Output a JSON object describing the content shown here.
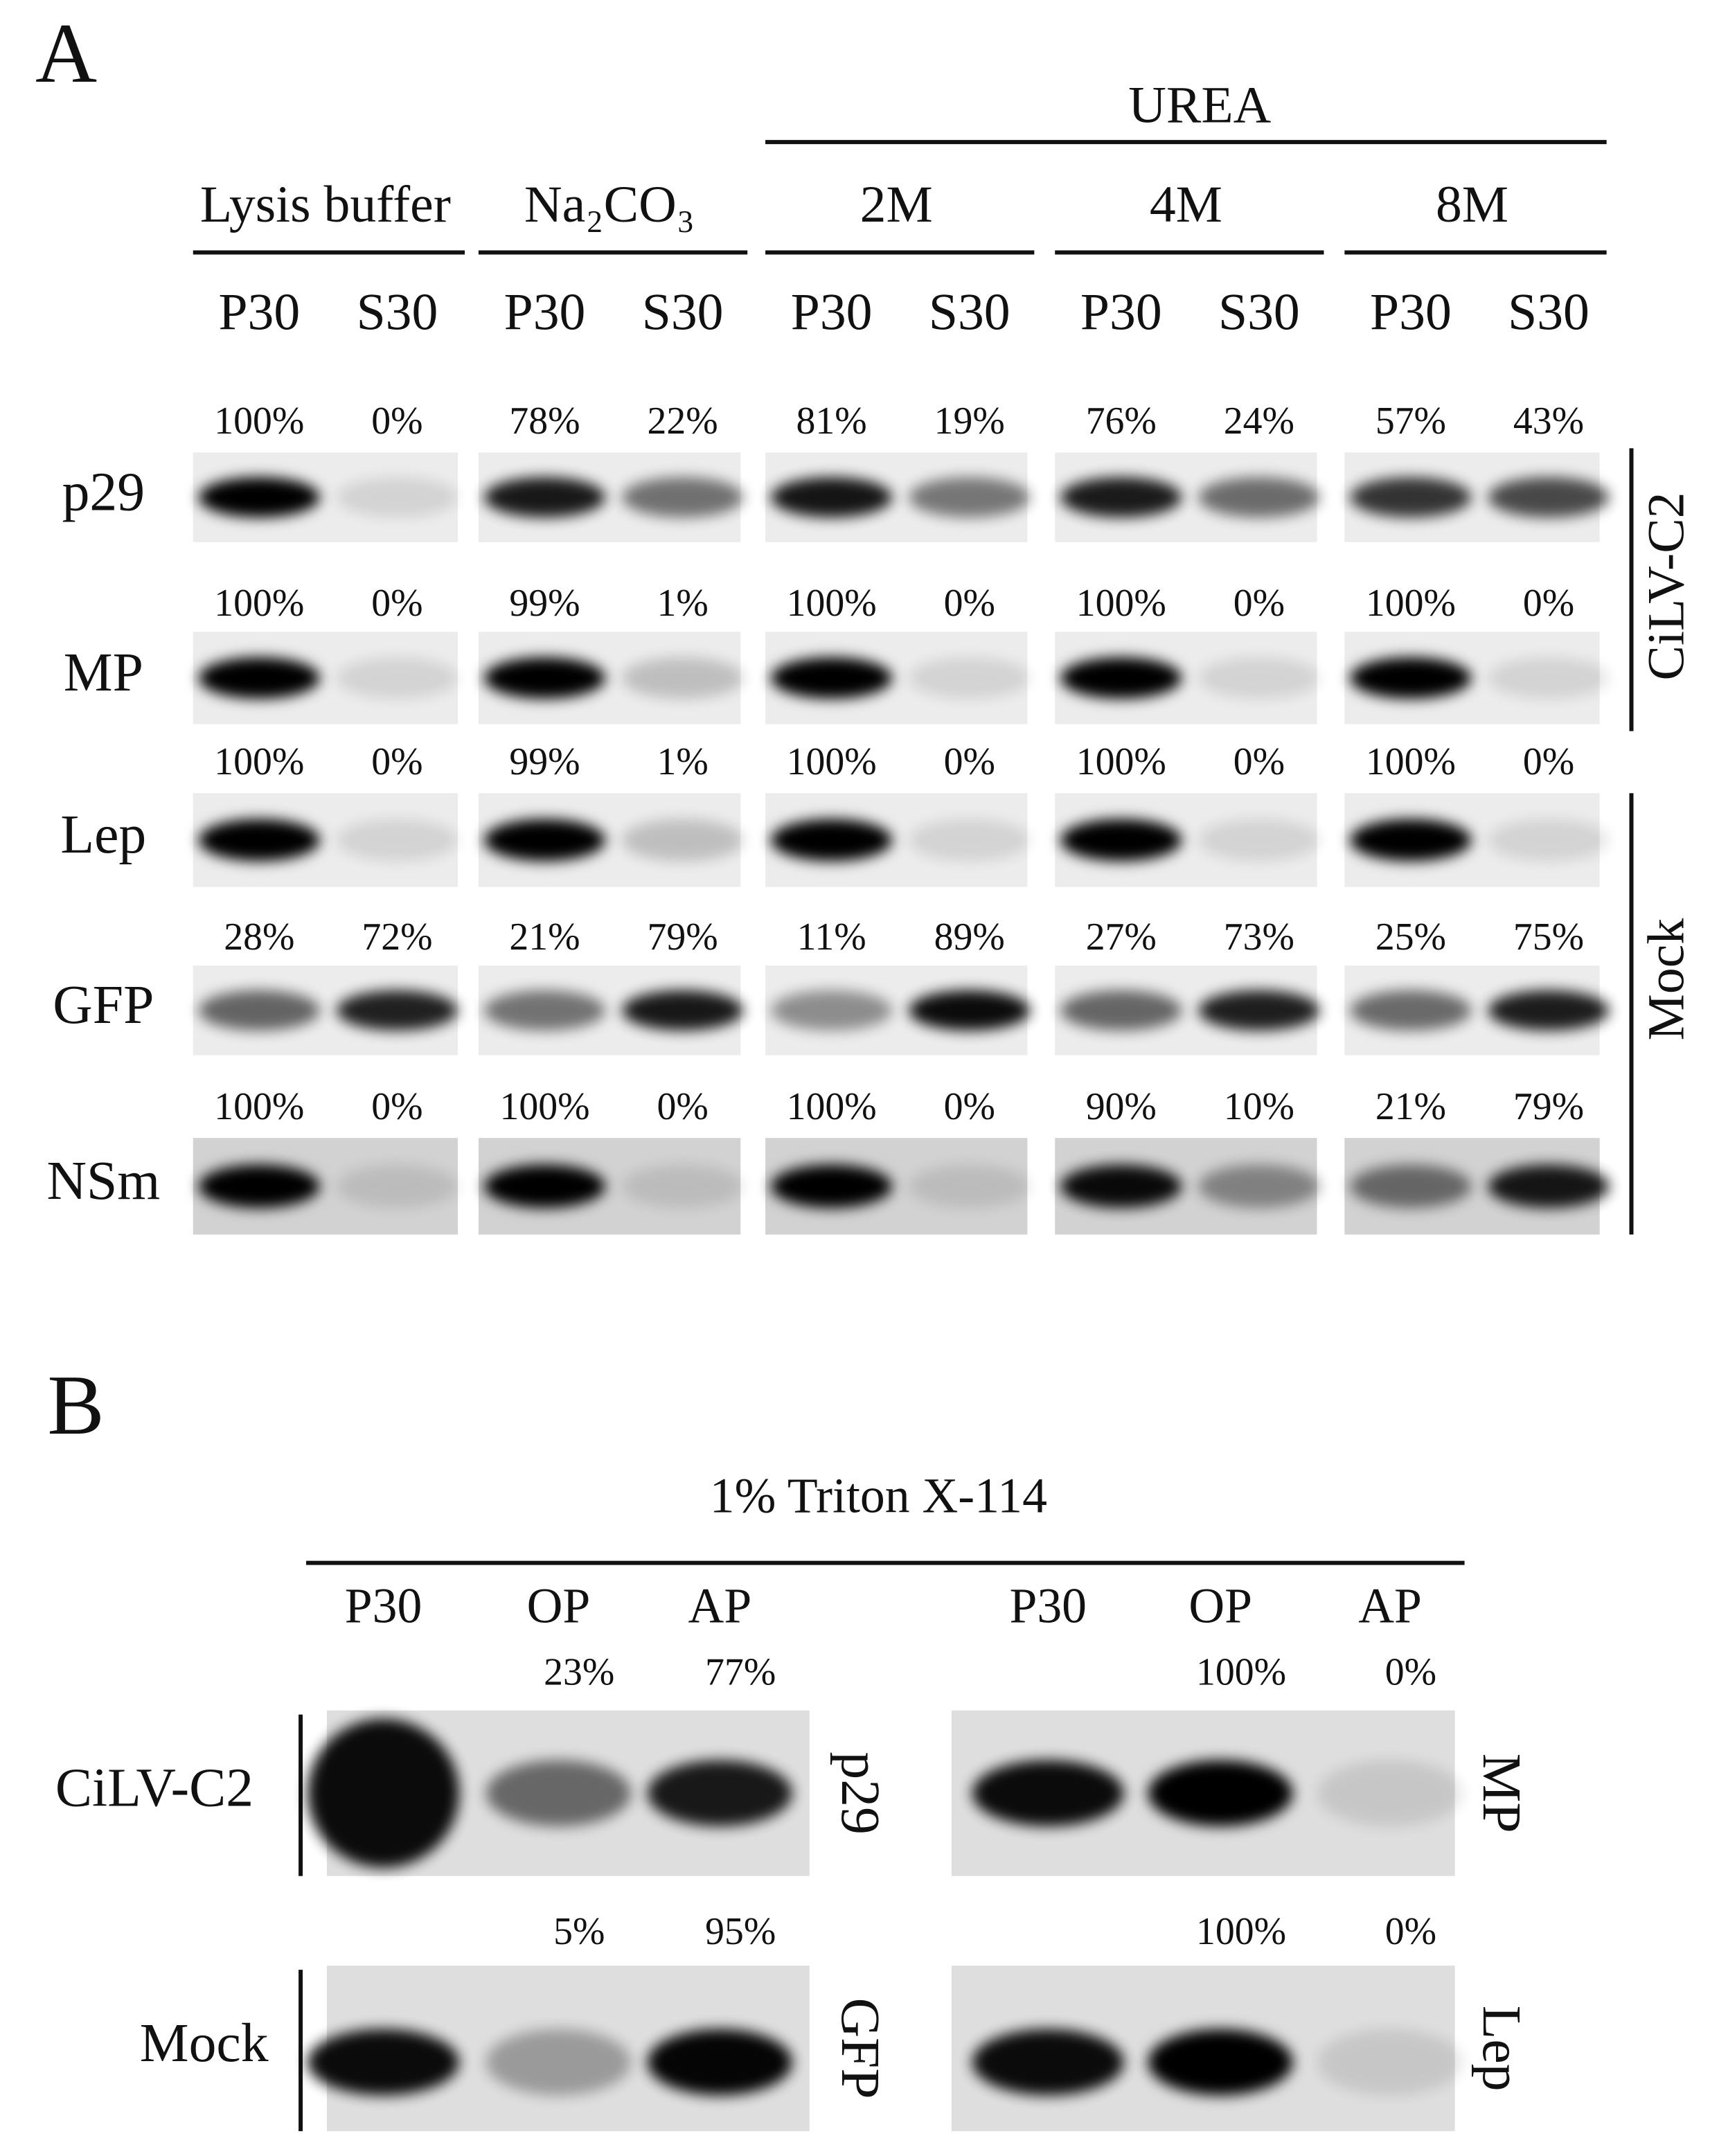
{
  "panel_a": {
    "label": "A",
    "urea": "UREA",
    "groups": [
      "Lysis buffer",
      "Na₂CO₃",
      "2M",
      "4M",
      "8M"
    ],
    "lane_labels": [
      [
        "P30",
        "S30"
      ],
      [
        "P30",
        "S30"
      ],
      [
        "P30",
        "S30"
      ],
      [
        "P30",
        "S30"
      ],
      [
        "P30",
        "S30"
      ]
    ],
    "rows": [
      {
        "protein": "p29",
        "percents": [
          [
            "100%",
            "0%"
          ],
          [
            "78%",
            "22%"
          ],
          [
            "81%",
            "19%"
          ],
          [
            "76%",
            "24%"
          ],
          [
            "57%",
            "43%"
          ]
        ]
      },
      {
        "protein": "MP",
        "percents": [
          [
            "100%",
            "0%"
          ],
          [
            "99%",
            "1%"
          ],
          [
            "100%",
            "0%"
          ],
          [
            "100%",
            "0%"
          ],
          [
            "100%",
            "0%"
          ]
        ]
      },
      {
        "protein": "Lep",
        "percents": [
          [
            "100%",
            "0%"
          ],
          [
            "99%",
            "1%"
          ],
          [
            "100%",
            "0%"
          ],
          [
            "100%",
            "0%"
          ],
          [
            "100%",
            "0%"
          ]
        ]
      },
      {
        "protein": "GFP",
        "percents": [
          [
            "28%",
            "72%"
          ],
          [
            "21%",
            "79%"
          ],
          [
            "11%",
            "89%"
          ],
          [
            "27%",
            "73%"
          ],
          [
            "25%",
            "75%"
          ]
        ]
      },
      {
        "protein": "NSm",
        "percents": [
          [
            "100%",
            "0%"
          ],
          [
            "100%",
            "0%"
          ],
          [
            "100%",
            "0%"
          ],
          [
            "90%",
            "10%"
          ],
          [
            "21%",
            "79%"
          ]
        ]
      }
    ],
    "sides": [
      "CiLV-C2",
      "Mock"
    ]
  },
  "panel_b": {
    "label": "B",
    "title": "1% Triton X-114",
    "lane_labels": [
      "P30",
      "OP",
      "AP",
      "P30",
      "OP",
      "AP"
    ],
    "rows": [
      {
        "label": "CiLV-C2",
        "left": {
          "protein": "p29",
          "percents": [
            "23%",
            "77%"
          ]
        },
        "right": {
          "protein": "MP",
          "percents": [
            "100%",
            "0%"
          ]
        }
      },
      {
        "label": "Mock",
        "left": {
          "protein": "GFP",
          "percents": [
            "5%",
            "95%"
          ]
        },
        "right": {
          "protein": "Lep",
          "percents": [
            "100%",
            "0%"
          ]
        }
      }
    ]
  }
}
